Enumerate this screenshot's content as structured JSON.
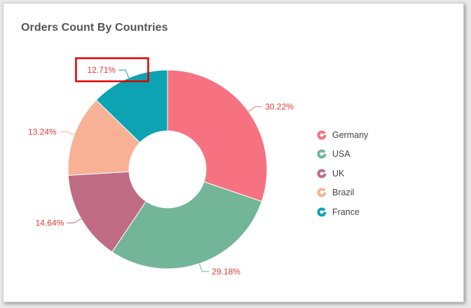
{
  "title": "Orders Count By Countries",
  "label_color": "#e53935",
  "highlight_color": "#e00000",
  "chart_data": {
    "type": "pie",
    "variant": "donut",
    "title": "Orders Count By Countries",
    "categories": [
      "Germany",
      "USA",
      "UK",
      "Brazil",
      "France"
    ],
    "values": [
      30.22,
      29.18,
      14.64,
      13.24,
      12.71
    ],
    "labels": [
      "30.22%",
      "29.18%",
      "14.64%",
      "13.24%",
      "12.71%"
    ],
    "colors": [
      "#f67280",
      "#73b598",
      "#c06c84",
      "#f8b195",
      "#0da3b3"
    ],
    "legend_position": "right",
    "highlighted_label": "France"
  }
}
